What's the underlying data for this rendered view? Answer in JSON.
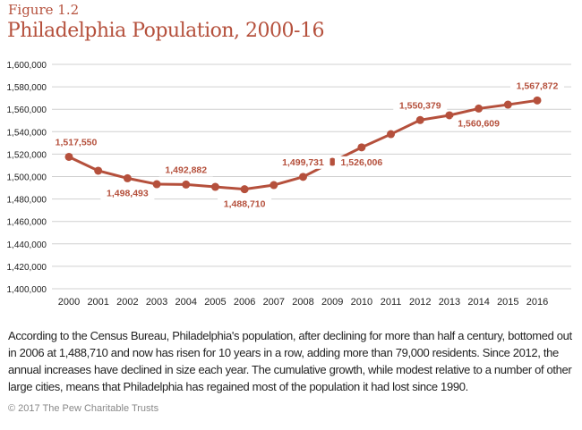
{
  "figure_label": "Figure 1.2",
  "caption": "According to the Census Bureau, Philadelphia's population, after declining for more than half a century, bottomed out in 2006 at 1,488,710 and now has risen for 10 years in a row, adding more than 79,000 residents. Since 2012, the annual increases have declined in size each year. The cumulative growth, while modest relative to a number of other large cities, means that Philadelphia has regained most of the population it had lost since 1990.",
  "copyright": "© 2017 The Pew Charitable Trusts",
  "colors": {
    "series": "#b5503c",
    "grid": "#d0d0d0"
  },
  "chart_data": {
    "type": "line",
    "title": "Philadelphia Population, 2000-16",
    "xlabel": "",
    "ylabel": "",
    "ylim": [
      1400000,
      1600000
    ],
    "yticks": [
      "1,400,000",
      "1,420,000",
      "1,440,000",
      "1,460,000",
      "1,480,000",
      "1,500,000",
      "1,520,000",
      "1,540,000",
      "1,560,000",
      "1,580,000",
      "1,600,000"
    ],
    "x": [
      "2000",
      "2001",
      "2002",
      "2003",
      "2004",
      "2005",
      "2006",
      "2007",
      "2008",
      "2009",
      "2010",
      "2011",
      "2012",
      "2013",
      "2014",
      "2015",
      "2016"
    ],
    "series": [
      {
        "name": "Population",
        "values": [
          1517550,
          1505200,
          1498493,
          1493200,
          1492882,
          1490800,
          1488710,
          1492400,
          1499731,
          1513100,
          1526006,
          1537800,
          1550379,
          1554600,
          1560609,
          1564100,
          1567872
        ]
      }
    ],
    "data_labels": [
      {
        "i": 0,
        "text": "1,517,550",
        "pos": "above"
      },
      {
        "i": 2,
        "text": "1,498,493",
        "pos": "below"
      },
      {
        "i": 4,
        "text": "1,492,882",
        "pos": "above"
      },
      {
        "i": 6,
        "text": "1,488,710",
        "pos": "below"
      },
      {
        "i": 8,
        "text": "1,499,731",
        "pos": "above"
      },
      {
        "i": 10,
        "text": "1,526,006",
        "pos": "below"
      },
      {
        "i": 12,
        "text": "1,550,379",
        "pos": "above"
      },
      {
        "i": 14,
        "text": "1,560,609",
        "pos": "below"
      },
      {
        "i": 16,
        "text": "1,567,872",
        "pos": "above"
      }
    ],
    "grid": true,
    "legend": "none"
  }
}
